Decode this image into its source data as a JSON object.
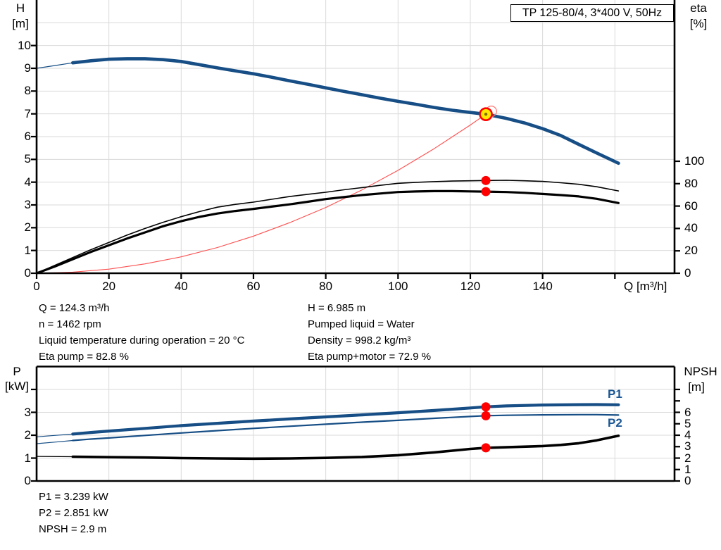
{
  "title_box": {
    "label": "TP 125-80/4, 3*400 V, 50Hz"
  },
  "colors": {
    "curve_blue": "#164E85",
    "curve_black": "#000000",
    "system_red": "#FF5050",
    "ring_red": "#FF7070",
    "dot_red": "#FF0000",
    "duty_yellow": "#FFE800",
    "duty_center": "#7F6A00",
    "grid": "#DADADA",
    "axis": "#000000",
    "label_blue": "#1A5694"
  },
  "top_chart": {
    "left_axis": {
      "title1": "H",
      "title2": "[m]"
    },
    "right_axis": {
      "title1": "eta",
      "title2": "[%]"
    },
    "x_axis": {
      "title": "Q [m³/h]"
    }
  },
  "bottom_chart": {
    "left_axis": {
      "title1": "P",
      "title2": "[kW]"
    },
    "right_axis": {
      "title1": "NPSH",
      "title2": "[m]"
    },
    "series_labels": {
      "p1": "P1",
      "p2": "P2"
    }
  },
  "info_top": {
    "left": [
      "Q = 124.3 m³/h",
      "n = 1462 rpm",
      "Liquid temperature during operation = 20 °C",
      "Eta pump = 82.8 %"
    ],
    "right": [
      "H = 6.985 m",
      "Pumped liquid = Water",
      "Density = 998.2 kg/m³",
      "Eta pump+motor = 72.9 %"
    ]
  },
  "info_bottom": [
    "P1 = 3.239 kW",
    "P2 = 2.851 kW",
    "NPSH = 2.9 m"
  ],
  "chart_data": [
    {
      "type": "line",
      "panel": "top",
      "title": "TP 125-80/4, 3*400 V, 50Hz",
      "xlabel": "Q [m³/h]",
      "ylabel_left": "H [m]",
      "ylabel_right": "eta [%]",
      "xlim": [
        0,
        176.5
      ],
      "ylim_left": [
        0,
        12
      ],
      "ylim_right": [
        0,
        244
      ],
      "grid": true,
      "grid_x": [
        20,
        40,
        60,
        80,
        100,
        120,
        140,
        160
      ],
      "grid_y": [
        1,
        2,
        3,
        4,
        5,
        6,
        7,
        8,
        9,
        10,
        11
      ],
      "x_ticks": [
        {
          "v": 0,
          "l": "0"
        },
        {
          "v": 20,
          "l": "20"
        },
        {
          "v": 40,
          "l": "40"
        },
        {
          "v": 60,
          "l": "60"
        },
        {
          "v": 80,
          "l": "80"
        },
        {
          "v": 100,
          "l": "100"
        },
        {
          "v": 120,
          "l": "120"
        },
        {
          "v": 140,
          "l": "140"
        },
        {
          "v": 160,
          "l": ""
        }
      ],
      "left_ticks": [
        {
          "v": 0,
          "l": "0"
        },
        {
          "v": 1,
          "l": "1"
        },
        {
          "v": 2,
          "l": "2"
        },
        {
          "v": 3,
          "l": "3"
        },
        {
          "v": 4,
          "l": "4"
        },
        {
          "v": 5,
          "l": "5"
        },
        {
          "v": 6,
          "l": "6"
        },
        {
          "v": 7,
          "l": "7"
        },
        {
          "v": 8,
          "l": "8"
        },
        {
          "v": 9,
          "l": "9"
        },
        {
          "v": 10,
          "l": "10"
        }
      ],
      "right_ticks": [
        {
          "v": 0,
          "l": "0"
        },
        {
          "v": 20,
          "l": "20"
        },
        {
          "v": 40,
          "l": "40"
        },
        {
          "v": 60,
          "l": "60"
        },
        {
          "v": 80,
          "l": "80"
        },
        {
          "v": 100,
          "l": "100"
        }
      ],
      "series": [
        {
          "id": "system-curve",
          "name": "System curve",
          "color": "#FF5050",
          "width": 1.1,
          "axis": "left",
          "points": [
            [
              0,
              0
            ],
            [
              10,
              0.05
            ],
            [
              20,
              0.18
            ],
            [
              30,
              0.41
            ],
            [
              40,
              0.72
            ],
            [
              50,
              1.13
            ],
            [
              60,
              1.63
            ],
            [
              70,
              2.22
            ],
            [
              80,
              2.89
            ],
            [
              90,
              3.66
            ],
            [
              100,
              4.52
            ],
            [
              110,
              5.47
            ],
            [
              120,
              6.51
            ],
            [
              124.3,
              6.985
            ]
          ]
        },
        {
          "id": "eta-pump-curve",
          "name": "Eta pump",
          "color": "#000000",
          "width": 1.6,
          "axis": "right",
          "points": [
            [
              0,
              0
            ],
            [
              5,
              7
            ],
            [
              10,
              14
            ],
            [
              15,
              21
            ],
            [
              20,
              27.5
            ],
            [
              25,
              34
            ],
            [
              30,
              40
            ],
            [
              35,
              45.5
            ],
            [
              40,
              50.5
            ],
            [
              45,
              55
            ],
            [
              50,
              59
            ],
            [
              55,
              61.5
            ],
            [
              60,
              63.5
            ],
            [
              65,
              66
            ],
            [
              70,
              68.5
            ],
            [
              75,
              70.5
            ],
            [
              80,
              72.3
            ],
            [
              85,
              74.5
            ],
            [
              90,
              76.5
            ],
            [
              95,
              78.5
            ],
            [
              100,
              80.3
            ],
            [
              105,
              81.2
            ],
            [
              110,
              81.8
            ],
            [
              115,
              82.3
            ],
            [
              120,
              82.6
            ],
            [
              124.3,
              82.8
            ],
            [
              130,
              83.0
            ],
            [
              135,
              82.6
            ],
            [
              140,
              82.0
            ],
            [
              145,
              80.8
            ],
            [
              150,
              79.4
            ],
            [
              155,
              77.2
            ],
            [
              161,
              73.5
            ]
          ]
        },
        {
          "id": "eta-total-curve",
          "name": "Eta pump+motor",
          "color": "#000000",
          "width": 3.2,
          "axis": "right",
          "points": [
            [
              0,
              0
            ],
            [
              5,
              6
            ],
            [
              10,
              12.5
            ],
            [
              15,
              19
            ],
            [
              20,
              25
            ],
            [
              25,
              31
            ],
            [
              30,
              36.5
            ],
            [
              35,
              42
            ],
            [
              40,
              46.5
            ],
            [
              45,
              50.3
            ],
            [
              50,
              53.3
            ],
            [
              55,
              55.6
            ],
            [
              60,
              57.5
            ],
            [
              65,
              59.5
            ],
            [
              70,
              61.5
            ],
            [
              75,
              63.8
            ],
            [
              80,
              66.2
            ],
            [
              85,
              68
            ],
            [
              90,
              69.8
            ],
            [
              95,
              71.2
            ],
            [
              100,
              72.5
            ],
            [
              105,
              73.0
            ],
            [
              110,
              73.3
            ],
            [
              115,
              73.3
            ],
            [
              120,
              73.1
            ],
            [
              124.3,
              72.9
            ],
            [
              130,
              72.5
            ],
            [
              135,
              71.8
            ],
            [
              140,
              70.8
            ],
            [
              145,
              69.8
            ],
            [
              150,
              68.6
            ],
            [
              155,
              66.5
            ],
            [
              161,
              62.7
            ]
          ]
        },
        {
          "id": "hq-curve",
          "name": "H-Q curve",
          "color": "#164E85",
          "width": 4.6,
          "axis": "left",
          "thin_until": 13,
          "points": [
            [
              0,
              9.0
            ],
            [
              5,
              9.12
            ],
            [
              10,
              9.24
            ],
            [
              15,
              9.33
            ],
            [
              20,
              9.4
            ],
            [
              25,
              9.42
            ],
            [
              30,
              9.42
            ],
            [
              35,
              9.38
            ],
            [
              40,
              9.3
            ],
            [
              45,
              9.16
            ],
            [
              50,
              9.02
            ],
            [
              55,
              8.89
            ],
            [
              60,
              8.76
            ],
            [
              65,
              8.61
            ],
            [
              70,
              8.45
            ],
            [
              75,
              8.3
            ],
            [
              80,
              8.14
            ],
            [
              85,
              7.99
            ],
            [
              90,
              7.84
            ],
            [
              95,
              7.69
            ],
            [
              100,
              7.55
            ],
            [
              105,
              7.42
            ],
            [
              110,
              7.28
            ],
            [
              115,
              7.16
            ],
            [
              120,
              7.06
            ],
            [
              124.3,
              6.985
            ],
            [
              130,
              6.8
            ],
            [
              135,
              6.6
            ],
            [
              140,
              6.35
            ],
            [
              145,
              6.05
            ],
            [
              150,
              5.66
            ],
            [
              155,
              5.28
            ],
            [
              161,
              4.83
            ]
          ]
        }
      ],
      "markers": [
        {
          "type": "requested-duty-ring",
          "name": "requested-duty-ring",
          "q": 125.8,
          "v": 7.11,
          "axis": "left"
        },
        {
          "type": "duty-point",
          "name": "duty-point-marker",
          "q": 124.3,
          "v": 6.985,
          "axis": "left"
        },
        {
          "type": "dot",
          "name": "eta-pump-dot",
          "q": 124.3,
          "v": 82.8,
          "axis": "right"
        },
        {
          "type": "dot",
          "name": "eta-total-dot",
          "q": 124.3,
          "v": 72.9,
          "axis": "right"
        }
      ]
    },
    {
      "type": "line",
      "panel": "bottom",
      "ylabel_left": "P [kW]",
      "ylabel_right": "NPSH [m]",
      "xlim": [
        0,
        176.5
      ],
      "ylim_left": [
        0,
        5
      ],
      "ylim_right": [
        0,
        10
      ],
      "grid": true,
      "grid_x": [
        20,
        40,
        60,
        80,
        100,
        120,
        140,
        160
      ],
      "grid_y": [
        1,
        2,
        3,
        4
      ],
      "x_ticks": [],
      "left_ticks": [
        {
          "v": 0,
          "l": "0"
        },
        {
          "v": 1,
          "l": "1"
        },
        {
          "v": 2,
          "l": "2"
        },
        {
          "v": 3,
          "l": "3"
        },
        {
          "v": 4,
          "l": ""
        }
      ],
      "right_ticks": [
        {
          "v": 0,
          "l": "0"
        },
        {
          "v": 1,
          "l": "1"
        },
        {
          "v": 2,
          "l": "2"
        },
        {
          "v": 3,
          "l": "3"
        },
        {
          "v": 4,
          "l": "4"
        },
        {
          "v": 5,
          "l": "5"
        },
        {
          "v": 6,
          "l": "6"
        },
        {
          "v": 7,
          "l": ""
        },
        {
          "v": 8,
          "l": ""
        }
      ],
      "series": [
        {
          "id": "p1-curve",
          "name": "P1",
          "color": "#164E85",
          "width": 4.2,
          "axis": "left",
          "thin_until": 13,
          "points": [
            [
              0,
              1.93
            ],
            [
              5,
              1.99
            ],
            [
              10,
              2.05
            ],
            [
              15,
              2.12
            ],
            [
              20,
              2.18
            ],
            [
              30,
              2.3
            ],
            [
              40,
              2.42
            ],
            [
              50,
              2.52
            ],
            [
              60,
              2.62
            ],
            [
              70,
              2.71
            ],
            [
              80,
              2.8
            ],
            [
              90,
              2.89
            ],
            [
              100,
              2.98
            ],
            [
              110,
              3.08
            ],
            [
              120,
              3.19
            ],
            [
              124.3,
              3.239
            ],
            [
              130,
              3.28
            ],
            [
              140,
              3.32
            ],
            [
              150,
              3.335
            ],
            [
              155,
              3.34
            ],
            [
              161,
              3.33
            ]
          ]
        },
        {
          "id": "p2-curve",
          "name": "P2",
          "color": "#164E85",
          "width": 2.2,
          "axis": "left",
          "thin_until": 13,
          "points": [
            [
              0,
              1.63
            ],
            [
              5,
              1.7
            ],
            [
              10,
              1.77
            ],
            [
              15,
              1.83
            ],
            [
              20,
              1.88
            ],
            [
              30,
              1.99
            ],
            [
              40,
              2.1
            ],
            [
              50,
              2.2
            ],
            [
              60,
              2.3
            ],
            [
              70,
              2.39
            ],
            [
              80,
              2.48
            ],
            [
              90,
              2.57
            ],
            [
              100,
              2.65
            ],
            [
              110,
              2.74
            ],
            [
              120,
              2.82
            ],
            [
              124.3,
              2.851
            ],
            [
              130,
              2.87
            ],
            [
              140,
              2.89
            ],
            [
              150,
              2.9
            ],
            [
              155,
              2.9
            ],
            [
              161,
              2.88
            ]
          ]
        },
        {
          "id": "npsh-curve",
          "name": "NPSH",
          "color": "#000000",
          "width": 3.6,
          "axis": "right",
          "thin_until": 13,
          "points": [
            [
              0,
              2.15
            ],
            [
              10,
              2.12
            ],
            [
              20,
              2.08
            ],
            [
              30,
              2.05
            ],
            [
              40,
              2.0
            ],
            [
              50,
              1.97
            ],
            [
              60,
              1.95
            ],
            [
              70,
              1.97
            ],
            [
              80,
              2.02
            ],
            [
              90,
              2.1
            ],
            [
              100,
              2.25
            ],
            [
              110,
              2.5
            ],
            [
              120,
              2.8
            ],
            [
              124.3,
              2.9
            ],
            [
              130,
              2.95
            ],
            [
              140,
              3.05
            ],
            [
              145,
              3.15
            ],
            [
              150,
              3.3
            ],
            [
              155,
              3.55
            ],
            [
              161,
              3.95
            ]
          ]
        }
      ],
      "markers": [
        {
          "type": "dot",
          "name": "p1-dot",
          "q": 124.3,
          "v": 3.239,
          "axis": "left"
        },
        {
          "type": "dot",
          "name": "p2-dot",
          "q": 124.3,
          "v": 2.851,
          "axis": "left"
        },
        {
          "type": "dot",
          "name": "npsh-dot",
          "q": 124.3,
          "v": 2.9,
          "axis": "right"
        }
      ]
    }
  ]
}
